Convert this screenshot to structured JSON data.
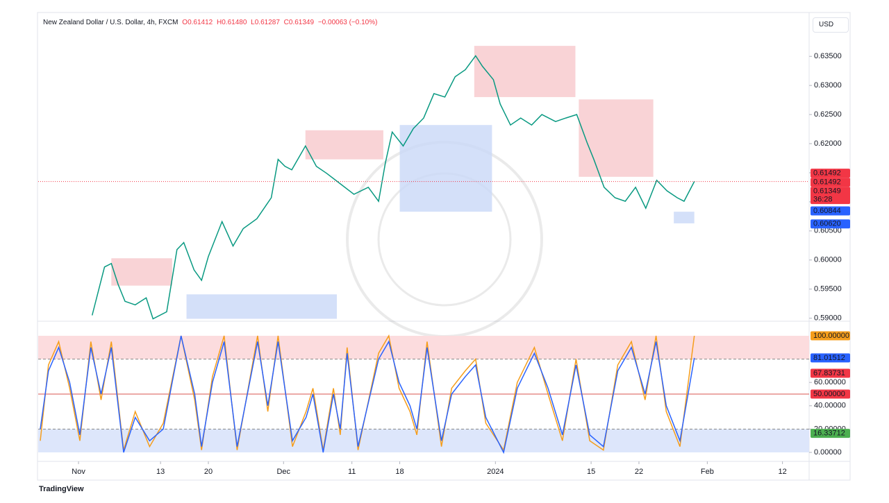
{
  "header": {
    "symbol": "New Zealand Dollar / U.S. Dollar, 4h, FXCM",
    "open": "O0.61412",
    "high": "H0.61480",
    "low": "L0.61287",
    "close": "C0.61349",
    "change": "−0.00063 (−0.10%)",
    "currency": "USD",
    "brand": "TradingView"
  },
  "chart_data": [
    {
      "type": "line",
      "x": [
        3.0,
        4.8,
        5.8,
        6.8,
        7.8,
        9.3,
        10.9,
        11.9,
        13.9,
        15.4,
        16.4,
        17.9,
        19.0,
        20.0,
        22.0,
        23.6,
        25.1,
        27.1,
        29.2,
        30.2,
        31.2,
        32.2,
        34.2,
        35.8,
        37.3,
        39.3,
        41.3,
        43.4,
        44.9,
        45.9,
        46.9,
        48.5,
        50.0,
        51.5,
        53.0,
        54.6,
        56.1,
        57.6,
        59.1,
        60.1,
        61.7,
        62.7,
        64.2,
        65.7,
        67.3,
        68.8,
        70.8,
        72.3,
        73.9,
        75.4,
        76.4,
        77.9,
        79.5,
        81.0,
        82.5,
        84.0,
        85.6,
        87.1,
        88.6,
        89.6,
        91.1
      ],
      "series": [
        {
          "name": "NZDUSD",
          "color": "#089981",
          "values": [
            0.5905,
            0.5988,
            0.5994,
            0.5958,
            0.5929,
            0.5923,
            0.5935,
            0.5899,
            0.5911,
            0.6018,
            0.603,
            0.5983,
            0.5965,
            0.6006,
            0.6066,
            0.6024,
            0.6054,
            0.6071,
            0.6107,
            0.6173,
            0.6161,
            0.6155,
            0.6196,
            0.6161,
            0.6149,
            0.6131,
            0.6113,
            0.6125,
            0.6101,
            0.6167,
            0.622,
            0.6196,
            0.6226,
            0.6244,
            0.6286,
            0.628,
            0.6315,
            0.6327,
            0.6351,
            0.6333,
            0.631,
            0.6268,
            0.6232,
            0.6244,
            0.6232,
            0.625,
            0.6238,
            0.6244,
            0.625,
            0.6202,
            0.6173,
            0.6125,
            0.6107,
            0.6101,
            0.6125,
            0.6089,
            0.6137,
            0.6119,
            0.6107,
            0.6101,
            0.61349
          ]
        }
      ],
      "zones": [
        {
          "x": [
            5.8,
            14.7
          ],
          "y": [
            0.5956,
            0.6003
          ],
          "color": "#f8c8cc"
        },
        {
          "x": [
            34.2,
            45.6
          ],
          "y": [
            0.6173,
            0.6223
          ],
          "color": "#f8c8cc"
        },
        {
          "x": [
            58.9,
            73.7
          ],
          "y": [
            0.628,
            0.6368
          ],
          "color": "#f8c8cc"
        },
        {
          "x": [
            74.2,
            85.1
          ],
          "y": [
            0.6143,
            0.6276
          ],
          "color": "#f8c8cc"
        },
        {
          "x": [
            16.8,
            38.8
          ],
          "y": [
            0.5899,
            0.5941
          ],
          "color": "#c9d8f7"
        },
        {
          "x": [
            48.0,
            61.5
          ],
          "y": [
            0.6083,
            0.6232
          ],
          "color": "#c9d8f7"
        },
        {
          "x": [
            88.1,
            91.1
          ],
          "y": [
            0.6063,
            0.6083
          ],
          "color": "#c9d8f7"
        }
      ],
      "price_labels": [
        {
          "value": 0.61492,
          "label": "0.61492",
          "color": "#f23645"
        },
        {
          "value": 0.61492,
          "label": "0.61492",
          "color": "#f23645"
        },
        {
          "value": 0.61349,
          "label": "0.61349",
          "color": "#f23645",
          "countdown": "36:28"
        },
        {
          "value": 0.60844,
          "label": "0.60844",
          "color": "#2962ff"
        },
        {
          "value": 0.6062,
          "label": "0.60620",
          "color": "#2962ff"
        }
      ],
      "xlim": [
        -4.9,
        107.9
      ],
      "ylim": [
        0.5896,
        0.6423
      ],
      "yticks": [
        {
          "value": 0.59,
          "label": "0.59000"
        },
        {
          "value": 0.595,
          "label": "0.59500"
        },
        {
          "value": 0.6,
          "label": "0.60000"
        },
        {
          "value": 0.605,
          "label": "0.60500"
        },
        {
          "value": 0.61,
          "label": "0.61000"
        },
        {
          "value": 0.615,
          "label": "0.61500"
        },
        {
          "value": 0.62,
          "label": "0.62000"
        },
        {
          "value": 0.625,
          "label": "0.62500"
        },
        {
          "value": 0.63,
          "label": "0.63000"
        },
        {
          "value": 0.635,
          "label": "0.63500"
        }
      ]
    },
    {
      "type": "line",
      "x": [
        -4.6,
        -3.4,
        -1.9,
        -0.3,
        1.2,
        2.8,
        4.3,
        5.8,
        7.6,
        9.3,
        11.4,
        13.4,
        16.0,
        18.0,
        19.0,
        20.6,
        22.3,
        24.2,
        27.2,
        28.7,
        30.2,
        32.3,
        34.3,
        35.3,
        36.8,
        38.3,
        39.3,
        40.3,
        41.9,
        44.9,
        46.4,
        47.9,
        49.5,
        50.5,
        52.0,
        54.1,
        55.6,
        57.6,
        59.1,
        60.6,
        63.2,
        65.2,
        67.7,
        69.7,
        71.8,
        73.8,
        75.8,
        77.8,
        79.9,
        81.9,
        83.9,
        85.5,
        87.0,
        89.0,
        91.1
      ],
      "series": [
        {
          "name": "%K",
          "color": "#f59d1b",
          "values": [
            10,
            75,
            95,
            55,
            10,
            95,
            45,
            95,
            2,
            35,
            5,
            25,
            100,
            45,
            2,
            65,
            100,
            2,
            100,
            35,
            100,
            5,
            35,
            55,
            2,
            55,
            15,
            90,
            2,
            85,
            100,
            55,
            35,
            15,
            95,
            5,
            55,
            70,
            80,
            25,
            2,
            60,
            90,
            50,
            10,
            80,
            10,
            2,
            75,
            95,
            45,
            100,
            35,
            5,
            100
          ]
        },
        {
          "name": "%D",
          "color": "#2962ff",
          "values": [
            20,
            70,
            90,
            60,
            15,
            90,
            50,
            90,
            0,
            30,
            10,
            20,
            100,
            50,
            5,
            60,
            95,
            5,
            95,
            40,
            95,
            10,
            30,
            50,
            0,
            50,
            20,
            85,
            5,
            80,
            95,
            60,
            40,
            20,
            90,
            10,
            50,
            65,
            75,
            30,
            0,
            55,
            85,
            55,
            15,
            75,
            15,
            5,
            70,
            90,
            50,
            95,
            40,
            10,
            81.01512
          ]
        }
      ],
      "bands": [
        {
          "y": [
            80,
            100
          ],
          "color": "#fcdcde"
        },
        {
          "y": [
            0,
            20
          ],
          "color": "#dde6fb"
        }
      ],
      "levels": [
        {
          "value": 80,
          "color": "#888888"
        },
        {
          "value": 50,
          "color": "#d9534f"
        },
        {
          "value": 20,
          "color": "#888888"
        }
      ],
      "value_labels": [
        {
          "value": 100,
          "label": "100.00000",
          "color": "#f59d1b"
        },
        {
          "value": 81.01512,
          "label": "81.01512",
          "color": "#2962ff"
        },
        {
          "value": 67.83731,
          "label": "67.83731",
          "color": "#f23645"
        },
        {
          "value": 50,
          "label": "50.00000",
          "color": "#f23645"
        },
        {
          "value": 16.33712,
          "label": "16.33712",
          "color": "#4caf50"
        }
      ],
      "xlim": [
        -4.9,
        107.9
      ],
      "ylim": [
        -7.7,
        111.3
      ],
      "yticks": [
        {
          "value": 0,
          "label": "0.00000"
        },
        {
          "value": 20,
          "label": "20.00000"
        },
        {
          "value": 40,
          "label": "40.00000"
        },
        {
          "value": 60,
          "label": "60.00000"
        }
      ],
      "xticks": [
        {
          "value": 1,
          "label": "Nov"
        },
        {
          "value": 13,
          "label": "13"
        },
        {
          "value": 20,
          "label": "20"
        },
        {
          "value": 31,
          "label": "Dec"
        },
        {
          "value": 41,
          "label": "11"
        },
        {
          "value": 48,
          "label": "18"
        },
        {
          "value": 62,
          "label": "2024"
        },
        {
          "value": 76,
          "label": "15"
        },
        {
          "value": 83,
          "label": "22"
        },
        {
          "value": 93,
          "label": "Feb"
        },
        {
          "value": 104,
          "label": "12"
        }
      ]
    }
  ]
}
